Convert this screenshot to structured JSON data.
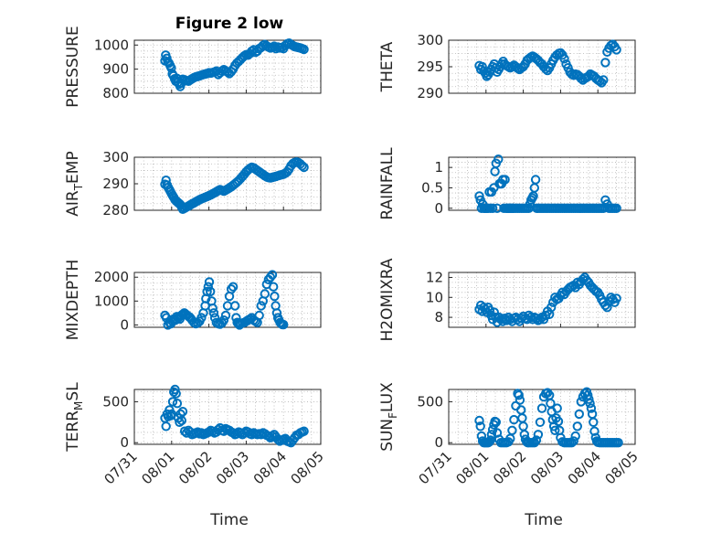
{
  "figure": {
    "title": "Figure 2 low",
    "x_label": "Time",
    "x_ticks": [
      "07/31",
      "08/01",
      "08/02",
      "08/03",
      "08/04",
      "08/05"
    ],
    "marker_color": "#0072bd"
  },
  "chart_data": [
    {
      "type": "scatter",
      "ylabel": "PRESSURE",
      "ylim": [
        800,
        1020
      ],
      "yticks": [
        800,
        900,
        1000
      ],
      "x": [
        0.82,
        0.84,
        0.87,
        0.9,
        0.93,
        0.96,
        0.99,
        1.02,
        1.05,
        1.08,
        1.11,
        1.14,
        1.17,
        1.2,
        1.23,
        1.26,
        1.3,
        1.35,
        1.4,
        1.45,
        1.5,
        1.55,
        1.6,
        1.65,
        1.7,
        1.75,
        1.8,
        1.85,
        1.9,
        1.95,
        2.0,
        2.05,
        2.1,
        2.15,
        2.2,
        2.25,
        2.3,
        2.35,
        2.4,
        2.45,
        2.5,
        2.55,
        2.6,
        2.65,
        2.7,
        2.75,
        2.8,
        2.85,
        2.9,
        2.95,
        3.0,
        3.05,
        3.1,
        3.15,
        3.2,
        3.25,
        3.3,
        3.35,
        3.4,
        3.45,
        3.5,
        3.55,
        3.6,
        3.65,
        3.7,
        3.75,
        3.8,
        3.85,
        3.9,
        3.95,
        4.0,
        4.05,
        4.1,
        4.15,
        4.2,
        4.25,
        4.3,
        4.35,
        4.4,
        4.45,
        4.5,
        4.55
      ],
      "y": [
        935,
        958,
        945,
        930,
        925,
        915,
        905,
        880,
        872,
        860,
        850,
        862,
        845,
        838,
        828,
        842,
        858,
        855,
        852,
        850,
        855,
        860,
        865,
        868,
        870,
        872,
        875,
        878,
        880,
        882,
        885,
        884,
        886,
        888,
        892,
        878,
        885,
        892,
        898,
        892,
        888,
        882,
        890,
        900,
        915,
        925,
        932,
        940,
        948,
        955,
        960,
        958,
        965,
        975,
        980,
        970,
        975,
        985,
        990,
        998,
        1002,
        996,
        992,
        988,
        990,
        995,
        985,
        992,
        988,
        990,
        985,
        998,
        1005,
        1008,
        1002,
        998,
        994,
        992,
        990,
        988,
        985,
        982
      ]
    },
    {
      "type": "scatter",
      "ylabel": "THETA",
      "ylim": [
        290,
        300
      ],
      "yticks": [
        290,
        295,
        300
      ],
      "x": [
        0.82,
        0.86,
        0.9,
        0.94,
        0.98,
        1.02,
        1.06,
        1.1,
        1.14,
        1.18,
        1.22,
        1.26,
        1.3,
        1.34,
        1.38,
        1.42,
        1.46,
        1.5,
        1.55,
        1.6,
        1.65,
        1.7,
        1.75,
        1.8,
        1.85,
        1.9,
        1.95,
        2.0,
        2.05,
        2.1,
        2.15,
        2.2,
        2.25,
        2.3,
        2.35,
        2.4,
        2.45,
        2.5,
        2.55,
        2.6,
        2.65,
        2.7,
        2.75,
        2.8,
        2.85,
        2.9,
        2.95,
        3.0,
        3.05,
        3.1,
        3.15,
        3.2,
        3.25,
        3.3,
        3.35,
        3.4,
        3.45,
        3.5,
        3.55,
        3.6,
        3.65,
        3.7,
        3.75,
        3.8,
        3.85,
        3.9,
        3.95,
        4.0,
        4.05,
        4.1,
        4.15,
        4.2,
        4.25,
        4.3,
        4.35,
        4.4,
        4.45,
        4.5
      ],
      "y": [
        295.2,
        294.5,
        295.0,
        294.2,
        293.8,
        293.2,
        293.5,
        294.0,
        294.5,
        295.0,
        295.5,
        294.8,
        294.0,
        294.5,
        295.0,
        295.5,
        296.0,
        295.5,
        295.2,
        295.0,
        294.8,
        295.0,
        295.3,
        295.0,
        294.7,
        294.5,
        294.8,
        295.0,
        295.5,
        296.2,
        296.5,
        296.8,
        297.0,
        296.8,
        296.5,
        296.2,
        295.8,
        295.5,
        295.0,
        294.6,
        294.3,
        294.8,
        295.5,
        296.2,
        296.8,
        297.2,
        297.5,
        297.6,
        297.2,
        296.5,
        295.5,
        294.8,
        294.0,
        293.6,
        293.4,
        293.6,
        293.5,
        293.2,
        292.8,
        292.5,
        292.8,
        293.0,
        293.2,
        293.6,
        293.4,
        293.2,
        292.8,
        292.5,
        292.3,
        292.0,
        292.5,
        295.8,
        297.8,
        298.5,
        299.0,
        299.2,
        298.8,
        298.2
      ]
    },
    {
      "type": "scatter",
      "ylabel": "AIR_TEMP",
      "ylim": [
        280,
        300
      ],
      "yticks": [
        280,
        290,
        300
      ],
      "x": [
        0.82,
        0.85,
        0.88,
        0.91,
        0.94,
        0.97,
        1.0,
        1.03,
        1.06,
        1.09,
        1.12,
        1.15,
        1.18,
        1.21,
        1.24,
        1.27,
        1.3,
        1.35,
        1.4,
        1.45,
        1.5,
        1.55,
        1.6,
        1.65,
        1.7,
        1.75,
        1.8,
        1.85,
        1.9,
        1.95,
        2.0,
        2.05,
        2.1,
        2.15,
        2.2,
        2.25,
        2.3,
        2.35,
        2.4,
        2.45,
        2.5,
        2.55,
        2.6,
        2.65,
        2.7,
        2.75,
        2.8,
        2.85,
        2.9,
        2.95,
        3.0,
        3.05,
        3.1,
        3.15,
        3.2,
        3.25,
        3.3,
        3.35,
        3.4,
        3.45,
        3.5,
        3.55,
        3.6,
        3.65,
        3.7,
        3.75,
        3.8,
        3.85,
        3.9,
        3.95,
        4.0,
        4.05,
        4.1,
        4.15,
        4.2,
        4.25,
        4.3,
        4.35,
        4.4,
        4.45,
        4.5,
        4.55
      ],
      "y": [
        289.8,
        291.3,
        289.5,
        288.6,
        287.8,
        287.0,
        286.2,
        285.5,
        284.8,
        284.0,
        283.5,
        283.2,
        282.8,
        282.5,
        282.0,
        281.2,
        280.4,
        280.8,
        281.2,
        281.6,
        282.0,
        282.4,
        282.8,
        283.2,
        283.6,
        284.0,
        284.3,
        284.6,
        284.9,
        285.2,
        285.5,
        285.8,
        286.2,
        286.6,
        287.0,
        287.4,
        287.8,
        287.5,
        287.2,
        287.6,
        288.0,
        288.4,
        288.9,
        289.4,
        290.0,
        290.6,
        291.2,
        292.0,
        292.8,
        293.6,
        294.5,
        295.2,
        295.8,
        296.2,
        296.0,
        295.5,
        295.0,
        294.5,
        294.0,
        293.5,
        293.0,
        292.6,
        292.3,
        292.2,
        292.4,
        292.6,
        292.8,
        293.0,
        293.2,
        293.4,
        293.6,
        294.0,
        294.5,
        295.5,
        296.8,
        297.6,
        298.0,
        298.2,
        298.0,
        297.5,
        296.8,
        296.2
      ]
    },
    {
      "type": "scatter",
      "ylabel": "RAINFALL",
      "ylim": [
        -0.05,
        1.25
      ],
      "yticks": [
        0,
        0.5,
        1
      ],
      "x": [
        0.82,
        0.85,
        0.88,
        0.91,
        0.94,
        0.97,
        1.0,
        1.03,
        1.06,
        1.09,
        1.12,
        1.15,
        1.18,
        1.21,
        1.24,
        1.27,
        1.3,
        1.33,
        1.36,
        1.39,
        1.42,
        1.45,
        1.48,
        1.51,
        1.54,
        1.57,
        1.6,
        1.63,
        1.66,
        1.69,
        1.72,
        1.75,
        1.8,
        1.85,
        1.9,
        1.95,
        2.0,
        2.05,
        2.1,
        2.15,
        2.18,
        2.21,
        2.24,
        2.27,
        2.3,
        2.33,
        2.36,
        2.4,
        2.45,
        2.5,
        2.55,
        2.6,
        2.65,
        2.7,
        2.75,
        2.8,
        2.85,
        2.9,
        2.95,
        3.0,
        3.05,
        3.1,
        3.15,
        3.2,
        3.25,
        3.3,
        3.35,
        3.4,
        3.45,
        3.5,
        3.55,
        3.6,
        3.65,
        3.7,
        3.75,
        3.8,
        3.85,
        3.9,
        3.95,
        4.0,
        4.05,
        4.1,
        4.15,
        4.2,
        4.25,
        4.3,
        4.35,
        4.4,
        4.45,
        4.5
      ],
      "y": [
        0.3,
        0.2,
        0.0,
        0.1,
        0.0,
        0.0,
        0.0,
        0.0,
        0.0,
        0.4,
        0.0,
        0.4,
        0.0,
        0.5,
        0.9,
        1.1,
        0.0,
        1.2,
        0.6,
        0.6,
        0.6,
        0.7,
        0.0,
        0.7,
        0.0,
        0.0,
        0.0,
        0.0,
        0.0,
        0.0,
        0.0,
        0.0,
        0.0,
        0.0,
        0.0,
        0.0,
        0.0,
        0.0,
        0.0,
        0.0,
        0.1,
        0.2,
        0.25,
        0.3,
        0.5,
        0.7,
        0.0,
        0.0,
        0.0,
        0.0,
        0.0,
        0.0,
        0.0,
        0.0,
        0.0,
        0.0,
        0.0,
        0.0,
        0.0,
        0.0,
        0.0,
        0.0,
        0.0,
        0.0,
        0.0,
        0.0,
        0.0,
        0.0,
        0.0,
        0.0,
        0.0,
        0.0,
        0.0,
        0.0,
        0.0,
        0.0,
        0.0,
        0.0,
        0.0,
        0.0,
        0.0,
        0.0,
        0.0,
        0.2,
        0.1,
        0.0,
        0.0,
        0.0,
        0.0,
        0.0
      ]
    },
    {
      "type": "scatter",
      "ylabel": "MIXDEPTH",
      "ylim": [
        -100,
        2200
      ],
      "yticks": [
        0,
        1000,
        2000
      ],
      "x": [
        0.82,
        0.86,
        0.9,
        0.94,
        0.98,
        1.02,
        1.06,
        1.1,
        1.14,
        1.18,
        1.22,
        1.26,
        1.3,
        1.34,
        1.38,
        1.42,
        1.46,
        1.5,
        1.55,
        1.6,
        1.65,
        1.7,
        1.75,
        1.8,
        1.85,
        1.9,
        1.92,
        1.95,
        1.98,
        2.01,
        2.04,
        2.07,
        2.1,
        2.13,
        2.16,
        2.2,
        2.25,
        2.3,
        2.35,
        2.4,
        2.45,
        2.5,
        2.55,
        2.6,
        2.65,
        2.7,
        2.73,
        2.76,
        2.79,
        2.82,
        2.85,
        2.9,
        2.95,
        3.0,
        3.05,
        3.1,
        3.15,
        3.2,
        3.25,
        3.3,
        3.35,
        3.4,
        3.45,
        3.5,
        3.55,
        3.6,
        3.65,
        3.7,
        3.73,
        3.76,
        3.79,
        3.82,
        3.85,
        3.88,
        3.91,
        3.94,
        3.97,
        4.0
      ],
      "y": [
        400,
        300,
        0,
        100,
        50,
        150,
        250,
        200,
        350,
        300,
        250,
        400,
        450,
        500,
        450,
        400,
        350,
        300,
        200,
        100,
        50,
        80,
        150,
        300,
        500,
        800,
        1100,
        1400,
        1600,
        1800,
        1400,
        1000,
        700,
        500,
        300,
        100,
        50,
        30,
        80,
        200,
        400,
        800,
        1200,
        1500,
        1600,
        800,
        300,
        100,
        50,
        0,
        50,
        80,
        100,
        150,
        200,
        250,
        300,
        200,
        150,
        100,
        400,
        800,
        1000,
        1300,
        1700,
        1900,
        2000,
        2100,
        1600,
        1200,
        800,
        500,
        300,
        200,
        100,
        50,
        20,
        10
      ]
    },
    {
      "type": "scatter",
      "ylabel": "H2OMIXRA",
      "ylim": [
        7,
        12.5
      ],
      "yticks": [
        8,
        10,
        12
      ],
      "x": [
        0.82,
        0.86,
        0.9,
        0.94,
        0.98,
        1.02,
        1.06,
        1.1,
        1.14,
        1.18,
        1.22,
        1.26,
        1.3,
        1.35,
        1.4,
        1.45,
        1.5,
        1.55,
        1.6,
        1.65,
        1.7,
        1.75,
        1.8,
        1.85,
        1.9,
        1.95,
        2.0,
        2.05,
        2.1,
        2.15,
        2.2,
        2.25,
        2.3,
        2.35,
        2.4,
        2.45,
        2.5,
        2.55,
        2.6,
        2.65,
        2.7,
        2.75,
        2.8,
        2.85,
        2.9,
        2.95,
        3.0,
        3.05,
        3.1,
        3.15,
        3.2,
        3.25,
        3.3,
        3.35,
        3.4,
        3.45,
        3.5,
        3.55,
        3.6,
        3.65,
        3.7,
        3.75,
        3.8,
        3.85,
        3.9,
        3.95,
        4.0,
        4.05,
        4.1,
        4.15,
        4.2,
        4.25,
        4.3,
        4.35,
        4.4,
        4.45,
        4.5
      ],
      "y": [
        8.8,
        9.2,
        8.6,
        9.0,
        8.8,
        8.5,
        9.0,
        8.7,
        8.2,
        7.8,
        8.5,
        8.0,
        7.5,
        8.0,
        7.8,
        7.6,
        7.9,
        7.7,
        8.0,
        7.8,
        7.6,
        7.9,
        8.0,
        7.8,
        7.6,
        7.9,
        8.1,
        7.9,
        7.8,
        8.2,
        8.0,
        7.8,
        8.0,
        7.9,
        7.7,
        7.8,
        8.0,
        7.8,
        8.2,
        8.6,
        8.3,
        9.0,
        9.5,
        10.0,
        9.8,
        9.9,
        10.2,
        10.5,
        10.3,
        10.6,
        10.8,
        11.0,
        11.1,
        11.2,
        11.0,
        11.5,
        11.3,
        11.6,
        11.8,
        12.0,
        11.7,
        11.5,
        11.2,
        11.0,
        10.8,
        10.6,
        10.5,
        10.2,
        9.8,
        9.5,
        9.2,
        9.0,
        9.6,
        10.0,
        9.8,
        9.5,
        9.9
      ]
    },
    {
      "type": "scatter",
      "ylabel": "TERR_MSL",
      "ylim": [
        -20,
        650
      ],
      "yticks": [
        0,
        500
      ],
      "x": [
        0.82,
        0.85,
        0.88,
        0.91,
        0.94,
        0.97,
        1.0,
        1.03,
        1.06,
        1.09,
        1.12,
        1.15,
        1.18,
        1.21,
        1.24,
        1.27,
        1.3,
        1.35,
        1.4,
        1.45,
        1.5,
        1.55,
        1.6,
        1.65,
        1.7,
        1.75,
        1.8,
        1.85,
        1.9,
        1.95,
        2.0,
        2.05,
        2.1,
        2.15,
        2.2,
        2.25,
        2.3,
        2.35,
        2.4,
        2.45,
        2.5,
        2.55,
        2.6,
        2.65,
        2.7,
        2.75,
        2.8,
        2.85,
        2.9,
        2.95,
        3.0,
        3.05,
        3.1,
        3.15,
        3.2,
        3.25,
        3.3,
        3.35,
        3.4,
        3.45,
        3.5,
        3.55,
        3.6,
        3.65,
        3.7,
        3.75,
        3.8,
        3.85,
        3.9,
        3.95,
        4.0,
        4.05,
        4.1,
        4.15,
        4.2,
        4.25,
        4.3,
        4.35,
        4.4,
        4.45,
        4.5,
        4.55
      ],
      "y": [
        300,
        200,
        350,
        320,
        400,
        330,
        350,
        500,
        620,
        650,
        600,
        480,
        300,
        250,
        350,
        270,
        380,
        140,
        120,
        150,
        130,
        100,
        110,
        120,
        130,
        110,
        120,
        100,
        110,
        120,
        130,
        150,
        140,
        120,
        130,
        160,
        180,
        150,
        140,
        170,
        160,
        150,
        130,
        120,
        100,
        110,
        130,
        120,
        100,
        120,
        140,
        130,
        110,
        100,
        120,
        110,
        100,
        110,
        100,
        120,
        110,
        90,
        80,
        60,
        80,
        100,
        70,
        40,
        20,
        30,
        40,
        50,
        20,
        10,
        0,
        30,
        60,
        90,
        100,
        120,
        130,
        140
      ]
    },
    {
      "type": "scatter",
      "ylabel": "SUN_FLUX",
      "ylim": [
        -20,
        650
      ],
      "yticks": [
        0,
        500
      ],
      "x": [
        0.82,
        0.85,
        0.88,
        0.91,
        0.94,
        0.97,
        1.0,
        1.03,
        1.06,
        1.09,
        1.12,
        1.15,
        1.18,
        1.21,
        1.24,
        1.27,
        1.3,
        1.35,
        1.4,
        1.45,
        1.5,
        1.55,
        1.6,
        1.65,
        1.7,
        1.75,
        1.8,
        1.85,
        1.88,
        1.91,
        1.94,
        1.97,
        2.0,
        2.03,
        2.06,
        2.09,
        2.12,
        2.15,
        2.2,
        2.25,
        2.3,
        2.35,
        2.4,
        2.45,
        2.5,
        2.55,
        2.6,
        2.65,
        2.7,
        2.73,
        2.76,
        2.79,
        2.82,
        2.85,
        2.88,
        2.91,
        2.94,
        2.97,
        3.0,
        3.05,
        3.1,
        3.15,
        3.2,
        3.25,
        3.3,
        3.35,
        3.4,
        3.45,
        3.5,
        3.55,
        3.6,
        3.65,
        3.7,
        3.73,
        3.76,
        3.79,
        3.82,
        3.85,
        3.88,
        3.91,
        3.94,
        3.97,
        4.0,
        4.05,
        4.1,
        4.15,
        4.2,
        4.25,
        4.3,
        4.35,
        4.4,
        4.45,
        4.5,
        4.55
      ],
      "y": [
        270,
        200,
        80,
        20,
        0,
        0,
        0,
        0,
        0,
        10,
        30,
        100,
        160,
        220,
        260,
        250,
        120,
        40,
        0,
        0,
        0,
        0,
        10,
        50,
        150,
        280,
        450,
        600,
        580,
        520,
        400,
        300,
        200,
        100,
        40,
        10,
        0,
        0,
        0,
        0,
        0,
        30,
        100,
        250,
        420,
        560,
        600,
        610,
        580,
        480,
        380,
        280,
        200,
        150,
        300,
        420,
        260,
        150,
        60,
        10,
        0,
        0,
        0,
        0,
        0,
        20,
        80,
        200,
        350,
        500,
        560,
        600,
        620,
        580,
        530,
        480,
        420,
        350,
        250,
        140,
        60,
        20,
        5,
        0,
        0,
        0,
        0,
        0,
        0,
        0,
        0,
        0,
        0,
        0
      ]
    }
  ]
}
